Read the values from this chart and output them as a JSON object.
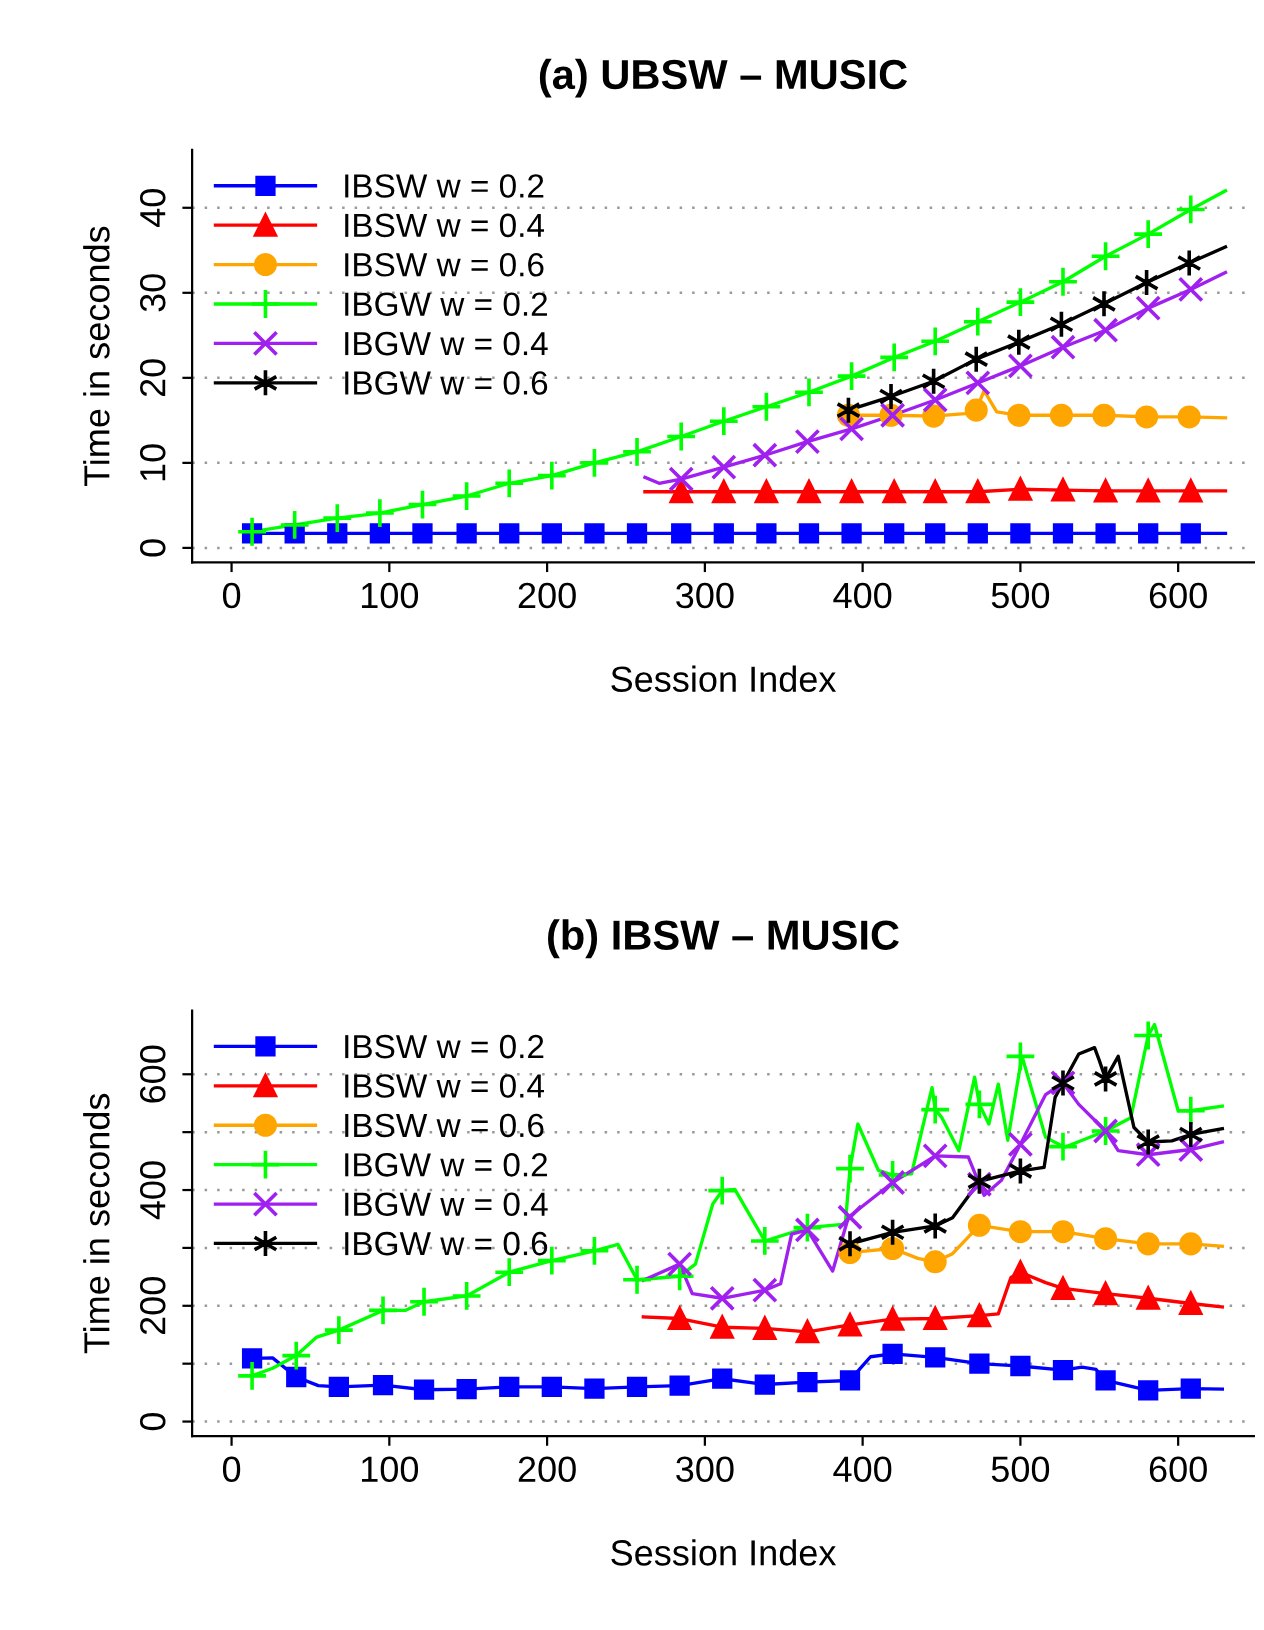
{
  "chart_data": [
    {
      "type": "line",
      "title": "(a) UBSW – MUSIC",
      "xlabel": "Session Index",
      "ylabel": "Time in seconds",
      "xlim": [
        -25,
        648
      ],
      "xticks": [
        0,
        100,
        200,
        300,
        400,
        500,
        600
      ],
      "ylim": [
        -1.7,
        46.8
      ],
      "yticks": [
        0,
        10,
        20,
        30,
        40
      ],
      "grid": "y",
      "legend": "top left",
      "series": [
        {
          "type": "line",
          "color": "#0000ff",
          "x": [
            13,
            630
          ],
          "values": [
            1.7,
            1.7
          ]
        },
        {
          "type": "scatter",
          "name": "IBSW w = 0.2",
          "color": "#0000ff",
          "marker": "square",
          "x": [
            13,
            40,
            67,
            94,
            121,
            149,
            176,
            203,
            230,
            257,
            285,
            312,
            339,
            366,
            393,
            420,
            446,
            473,
            500,
            527,
            554,
            581,
            608
          ],
          "values": [
            1.7,
            1.7,
            1.7,
            1.7,
            1.7,
            1.7,
            1.7,
            1.7,
            1.7,
            1.7,
            1.7,
            1.7,
            1.7,
            1.7,
            1.7,
            1.7,
            1.7,
            1.7,
            1.7,
            1.7,
            1.7,
            1.7,
            1.7
          ]
        },
        {
          "type": "line",
          "color": "#ff0000",
          "x": [
            262,
            285,
            312,
            339,
            366,
            393,
            420,
            446,
            473,
            500,
            527,
            554,
            581,
            608,
            630
          ],
          "values": [
            6.6,
            6.6,
            6.6,
            6.6,
            6.6,
            6.6,
            6.6,
            6.6,
            6.6,
            6.9,
            6.8,
            6.7,
            6.7,
            6.7,
            6.7
          ]
        },
        {
          "type": "scatter",
          "name": "IBSW w = 0.4",
          "color": "#ff0000",
          "marker": "triangle",
          "x": [
            285,
            312,
            339,
            366,
            393,
            420,
            446,
            473,
            500,
            527,
            554,
            581,
            608
          ],
          "values": [
            6.6,
            6.6,
            6.6,
            6.6,
            6.6,
            6.6,
            6.6,
            6.6,
            6.9,
            6.8,
            6.7,
            6.7,
            6.7
          ]
        },
        {
          "type": "line",
          "color": "#ffa500",
          "x": [
            391,
            418,
            445,
            465,
            472,
            477,
            485,
            499,
            526,
            553,
            580,
            607,
            630
          ],
          "values": [
            15.6,
            15.6,
            15.5,
            15.8,
            16.2,
            18.5,
            16.0,
            15.6,
            15.6,
            15.6,
            15.4,
            15.4,
            15.3
          ]
        },
        {
          "type": "scatter",
          "name": "IBSW w = 0.6",
          "color": "#ffa500",
          "marker": "circle",
          "x": [
            391,
            418,
            445,
            472,
            499,
            526,
            553,
            580,
            607
          ],
          "values": [
            15.6,
            15.6,
            15.5,
            16.2,
            15.6,
            15.6,
            15.6,
            15.4,
            15.4
          ]
        },
        {
          "type": "line",
          "color": "#00ff00",
          "x": [
            9,
            13,
            40,
            67,
            94,
            121,
            149,
            176,
            203,
            230,
            257,
            285,
            312,
            339,
            366,
            393,
            420,
            446,
            473,
            500,
            527,
            554,
            581,
            608,
            630
          ],
          "values": [
            1.9,
            1.9,
            2.7,
            3.5,
            4.1,
            5.1,
            6.1,
            7.6,
            8.5,
            10.0,
            11.3,
            13.1,
            14.9,
            16.6,
            18.3,
            20.2,
            22.4,
            24.3,
            26.6,
            28.9,
            31.3,
            34.3,
            36.9,
            39.8,
            42.0
          ]
        },
        {
          "type": "scatter",
          "name": "IBGW w = 0.2",
          "color": "#00ff00",
          "marker": "plus",
          "x": [
            13,
            40,
            67,
            94,
            121,
            149,
            176,
            203,
            230,
            257,
            285,
            312,
            339,
            366,
            393,
            420,
            446,
            473,
            500,
            527,
            554,
            581,
            608
          ],
          "values": [
            1.9,
            2.7,
            3.5,
            4.1,
            5.1,
            6.1,
            7.6,
            8.5,
            10.0,
            11.3,
            13.1,
            14.9,
            16.6,
            18.3,
            20.2,
            22.4,
            24.3,
            26.6,
            28.9,
            31.3,
            34.3,
            36.9,
            39.8
          ]
        },
        {
          "type": "line",
          "color": "#a020f0",
          "x": [
            262,
            271,
            285,
            312,
            338,
            365,
            393,
            419,
            446,
            473,
            500,
            527,
            554,
            581,
            608,
            630
          ],
          "values": [
            8.3,
            7.6,
            8.1,
            9.5,
            10.9,
            12.5,
            14.0,
            15.6,
            17.4,
            19.4,
            21.4,
            23.6,
            25.6,
            28.2,
            30.4,
            32.4
          ]
        },
        {
          "type": "scatter",
          "name": "IBGW w = 0.4",
          "color": "#a020f0",
          "marker": "x",
          "x": [
            285,
            312,
            338,
            365,
            393,
            419,
            446,
            473,
            500,
            527,
            554,
            581,
            608
          ],
          "values": [
            8.1,
            9.5,
            10.9,
            12.5,
            14.0,
            15.6,
            17.4,
            19.4,
            21.4,
            23.6,
            25.6,
            28.2,
            30.4
          ]
        },
        {
          "type": "line",
          "color": "#000000",
          "x": [
            391,
            418,
            445,
            472,
            499,
            526,
            553,
            580,
            607,
            630
          ],
          "values": [
            16.2,
            17.8,
            19.6,
            22.2,
            24.2,
            26.3,
            28.7,
            31.2,
            33.5,
            35.4
          ]
        },
        {
          "type": "scatter",
          "name": "IBGW w = 0.6",
          "color": "#000000",
          "marker": "cross",
          "x": [
            391,
            418,
            445,
            472,
            499,
            526,
            553,
            580,
            607
          ],
          "values": [
            16.2,
            17.8,
            19.6,
            22.2,
            24.2,
            26.3,
            28.7,
            31.2,
            33.5
          ]
        }
      ]
    },
    {
      "type": "line",
      "title": "(b) IBSW – MUSIC",
      "xlabel": "Session Index",
      "ylabel": "Time in seconds",
      "xlim": [
        -25,
        648
      ],
      "xticks": [
        0,
        100,
        200,
        300,
        400,
        500,
        600
      ],
      "ylim": [
        -25,
        710
      ],
      "yticks": [
        0,
        {
          "value": 100,
          "label": null
        },
        200,
        {
          "value": 300,
          "label": null
        },
        400,
        {
          "value": 500,
          "label": null
        },
        600
      ],
      "grid": "y",
      "legend": "top left",
      "series": [
        {
          "type": "line",
          "color": "#0000ff",
          "x": [
            13,
            26,
            41,
            55,
            68,
            96,
            122,
            149,
            176,
            203,
            230,
            257,
            284,
            311,
            338,
            365,
            392,
            396,
            405,
            419,
            446,
            474,
            500,
            527,
            539,
            548,
            554,
            581,
            608,
            628
          ],
          "values": [
            109,
            110,
            77,
            62,
            60,
            63,
            55,
            56,
            60,
            60,
            57,
            60,
            62,
            74,
            64,
            68,
            71,
            84,
            112,
            117,
            111,
            100,
            96,
            89,
            94,
            90,
            71,
            54,
            57,
            56
          ]
        },
        {
          "type": "scatter",
          "name": "IBSW w = 0.2",
          "color": "#0000ff",
          "marker": "square",
          "x": [
            13,
            41,
            68,
            96,
            122,
            149,
            176,
            203,
            230,
            257,
            284,
            311,
            338,
            365,
            392,
            419,
            446,
            474,
            500,
            527,
            554,
            581,
            608
          ],
          "values": [
            109,
            77,
            60,
            63,
            55,
            56,
            60,
            60,
            57,
            60,
            62,
            74,
            64,
            68,
            71,
            117,
            111,
            100,
            96,
            89,
            71,
            54,
            57
          ]
        },
        {
          "type": "line",
          "color": "#ff0000",
          "x": [
            261,
            284,
            311,
            338,
            365,
            392,
            419,
            446,
            474,
            486,
            494,
            500,
            516,
            527,
            554,
            581,
            608,
            628
          ],
          "values": [
            181,
            178,
            163,
            161,
            155,
            167,
            177,
            178,
            183,
            186,
            249,
            258,
            240,
            230,
            221,
            213,
            204,
            198
          ]
        },
        {
          "type": "scatter",
          "name": "IBSW w = 0.4",
          "color": "#ff0000",
          "marker": "triangle",
          "x": [
            284,
            311,
            338,
            365,
            392,
            419,
            446,
            474,
            500,
            527,
            554,
            581,
            608
          ],
          "values": [
            178,
            163,
            161,
            155,
            167,
            177,
            178,
            183,
            258,
            230,
            221,
            213,
            204
          ]
        },
        {
          "type": "line",
          "color": "#ffa500",
          "x": [
            392,
            419,
            435,
            446,
            457,
            474,
            500,
            527,
            554,
            581,
            608,
            628
          ],
          "values": [
            292,
            299,
            282,
            276,
            290,
            339,
            328,
            328,
            316,
            307,
            307,
            303
          ]
        },
        {
          "type": "scatter",
          "name": "IBSW w = 0.6",
          "color": "#ffa500",
          "marker": "circle",
          "x": [
            392,
            419,
            446,
            474,
            500,
            527,
            554,
            581,
            608
          ],
          "values": [
            292,
            299,
            276,
            339,
            328,
            328,
            316,
            307,
            307
          ]
        },
        {
          "type": "line",
          "color": "#00ff00",
          "x": [
            13,
            26,
            41,
            54,
            68,
            96,
            110,
            122,
            149,
            176,
            203,
            230,
            245,
            257,
            284,
            294,
            305,
            311,
            319,
            338,
            365,
            389,
            392,
            397,
            410,
            419,
            431,
            444,
            446,
            450,
            461,
            471,
            474,
            480,
            486,
            492,
            501,
            516,
            528,
            554,
            570,
            581,
            585,
            600,
            608,
            628
          ],
          "values": [
            79,
            92,
            114,
            146,
            158,
            192,
            192,
            207,
            217,
            258,
            278,
            295,
            306,
            245,
            251,
            272,
            376,
            399,
            401,
            312,
            335,
            341,
            437,
            514,
            434,
            426,
            428,
            577,
            539,
            526,
            468,
            595,
            548,
            514,
            583,
            486,
            631,
            491,
            474,
            502,
            525,
            667,
            686,
            537,
            537,
            545
          ]
        },
        {
          "type": "scatter",
          "name": "IBGW w = 0.2",
          "color": "#00ff00",
          "marker": "plus",
          "x": [
            13,
            41,
            68,
            96,
            122,
            149,
            176,
            203,
            230,
            257,
            284,
            311,
            338,
            365,
            392,
            419,
            446,
            474,
            500,
            527,
            554,
            581,
            608
          ],
          "values": [
            79,
            114,
            158,
            192,
            207,
            217,
            258,
            278,
            295,
            245,
            251,
            399,
            312,
            335,
            437,
            426,
            539,
            548,
            631,
            475,
            502,
            667,
            537
          ]
        },
        {
          "type": "line",
          "color": "#a020f0",
          "x": [
            261,
            284,
            292,
            311,
            338,
            348,
            355,
            365,
            381,
            391,
            419,
            446,
            467,
            474,
            477,
            488,
            500,
            516,
            527,
            537,
            554,
            562,
            581,
            608,
            628
          ],
          "values": [
            244,
            272,
            221,
            213,
            227,
            238,
            324,
            331,
            260,
            353,
            413,
            459,
            457,
            410,
            391,
            417,
            479,
            565,
            585,
            548,
            502,
            468,
            461,
            470,
            483
          ]
        },
        {
          "type": "scatter",
          "name": "IBGW w = 0.4",
          "color": "#a020f0",
          "marker": "x",
          "x": [
            284,
            311,
            338,
            365,
            392,
            419,
            446,
            474,
            500,
            527,
            554,
            581,
            608
          ],
          "values": [
            272,
            213,
            227,
            331,
            353,
            413,
            459,
            410,
            479,
            585,
            502,
            461,
            470
          ]
        },
        {
          "type": "line",
          "color": "#000000",
          "x": [
            392,
            419,
            446,
            457,
            474,
            500,
            515,
            522,
            527,
            537,
            547,
            550,
            554,
            562,
            572,
            581,
            596,
            608,
            628
          ],
          "values": [
            307,
            327,
            338,
            352,
            415,
            433,
            439,
            560,
            585,
            635,
            646,
            624,
            592,
            631,
            508,
            483,
            485,
            496,
            506
          ]
        },
        {
          "type": "scatter",
          "name": "IBGW w = 0.6",
          "color": "#000000",
          "marker": "cross",
          "x": [
            392,
            419,
            446,
            474,
            500,
            527,
            554,
            581,
            608
          ],
          "values": [
            307,
            327,
            338,
            415,
            433,
            585,
            592,
            483,
            496
          ]
        }
      ]
    }
  ]
}
